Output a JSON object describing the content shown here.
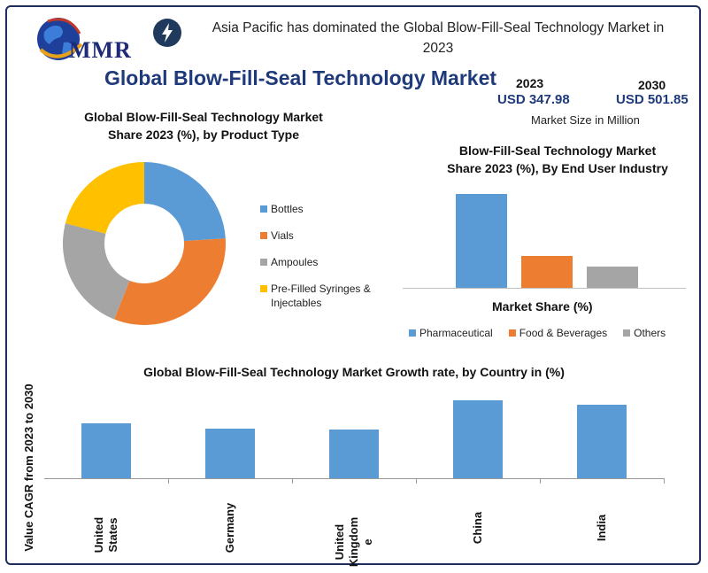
{
  "header": {
    "logo_text": "MMR",
    "headline": "Asia Pacific has dominated the Global Blow-Fill-Seal Technology Market in 2023",
    "icon": "lightning-bolt-icon"
  },
  "main_title": "Global Blow-Fill-Seal Technology Market",
  "market_size": {
    "year1": "2023",
    "value1": "USD 347.98",
    "year2": "2030",
    "value2": "USD 501.85",
    "unit": "Market Size in Million"
  },
  "colors": {
    "blue": "#5b9bd5",
    "orange": "#ed7d31",
    "gray": "#a5a5a5",
    "yellow": "#ffc000",
    "title_blue": "#1f3a7a"
  },
  "chart_data": [
    {
      "type": "pie",
      "title": "Global Blow-Fill-Seal Technology Market Share 2023 (%), by Product Type",
      "categories": [
        "Bottles",
        "Vials",
        "Ampoules",
        "Pre-Filled Syringes & Injectables"
      ],
      "values": [
        24,
        32,
        23,
        21
      ],
      "legend_position": "right",
      "donut": true
    },
    {
      "type": "bar",
      "title": "Blow-Fill-Seal Technology Market Share 2023 (%), By End User Industry",
      "xlabel": "Market Share (%)",
      "series": [
        {
          "name": "Pharmaceutical",
          "values": [
            100
          ]
        },
        {
          "name": "Food & Beverages",
          "values": [
            34
          ]
        },
        {
          "name": "Others",
          "values": [
            23
          ]
        }
      ],
      "ylim": [
        0,
        100
      ],
      "legend_position": "bottom"
    },
    {
      "type": "bar",
      "title": "Global Blow-Fill-Seal Technology Market Growth rate, by Country in (%)",
      "ylabel": "Value CAGR from 2023 to 2030",
      "categories": [
        "United States",
        "Germany",
        "United Kingdom",
        "China",
        "India"
      ],
      "tick_labels": [
        "United\nStates",
        "Germany",
        "United\nKingdom\ne",
        "China",
        "India"
      ],
      "values": [
        6.0,
        5.4,
        5.3,
        8.5,
        8.0
      ],
      "ylim": [
        0,
        8.5
      ]
    }
  ]
}
